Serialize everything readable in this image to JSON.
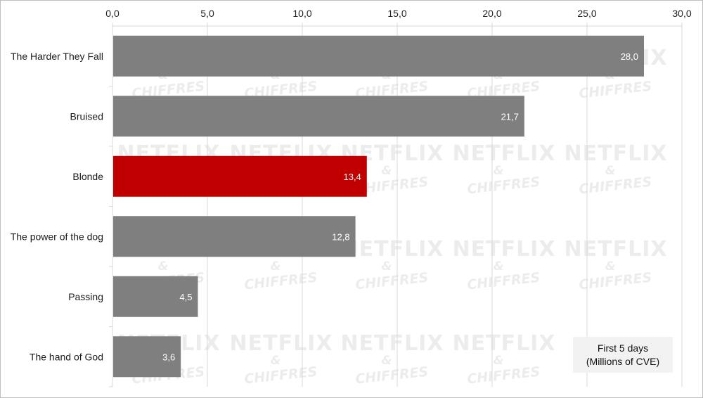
{
  "chart_data": {
    "type": "bar",
    "orientation": "horizontal",
    "axis_position": "top",
    "categories": [
      "The Harder They Fall",
      "Bruised",
      "Blonde",
      "The power of the dog",
      "Passing",
      "The hand of God"
    ],
    "values": [
      28.0,
      21.7,
      13.4,
      12.8,
      4.5,
      3.6
    ],
    "value_labels": [
      "28,0",
      "21,7",
      "13,4",
      "12,8",
      "4,5",
      "3,6"
    ],
    "xlim": [
      0,
      30
    ],
    "x_ticks": [
      0,
      5,
      10,
      15,
      20,
      25,
      30
    ],
    "x_tick_labels": [
      "0,0",
      "5,0",
      "10,0",
      "15,0",
      "20,0",
      "25,0",
      "30,0"
    ],
    "grid": true,
    "colors": {
      "default_bar": "#7f7f7f",
      "highlight_bar": "#c00000",
      "gridline": "#d9d9d9",
      "watermark": "#ececec"
    },
    "highlight_category": "Blonde",
    "annotation": {
      "line1": "First 5 days",
      "line2": "(Millions of CVE)",
      "placement": "bottom-right"
    },
    "watermark": {
      "title": "NETFLIX",
      "amp": "&",
      "sub": "CHIFFRES"
    }
  }
}
